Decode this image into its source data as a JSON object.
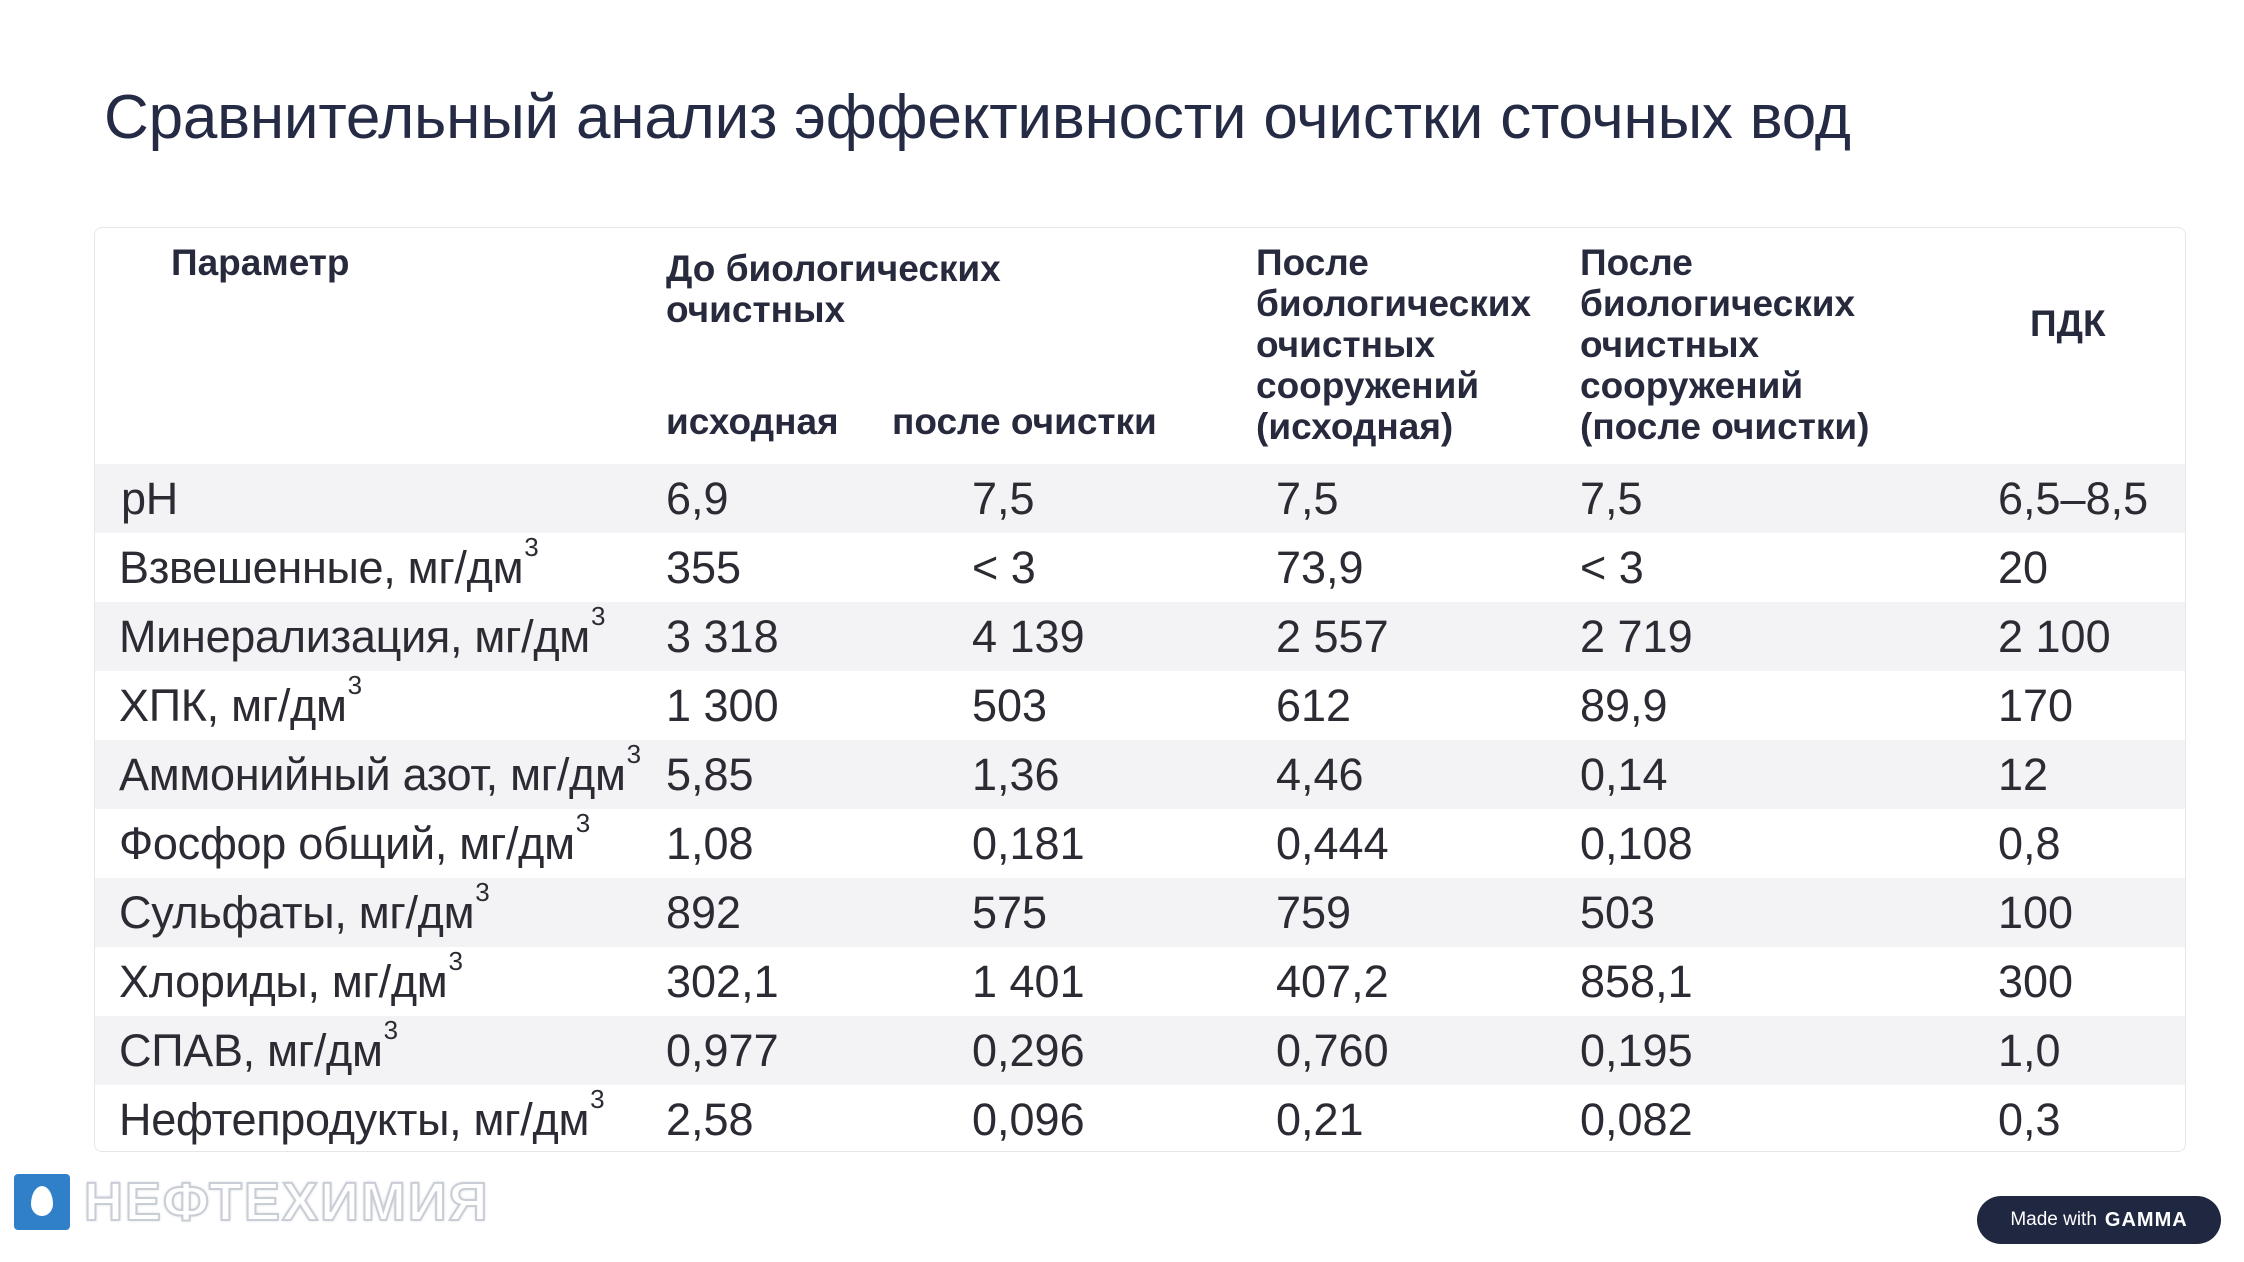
{
  "title": "Сравнительный анализ эффективности очистки сточных вод",
  "table": {
    "headers": {
      "param": "Параметр",
      "before_bio_l1": "До биологических",
      "before_bio_l2": "очистных",
      "sub_initial": "исходная",
      "sub_after": "после очистки",
      "after_init_l1": "После",
      "after_init_l2": "биологических",
      "after_init_l3": "очистных",
      "after_init_l4": "сооружений",
      "after_init_l5": "(исходная)",
      "after_clean_l1": "После",
      "after_clean_l2": "биологических",
      "after_clean_l3": "очистных",
      "after_clean_l4": "сооружений",
      "after_clean_l5": "(после очистки)",
      "pdk": "ПДК"
    },
    "rows": [
      {
        "param": "pH",
        "sup": "",
        "v1": "6,9",
        "v2": "7,5",
        "v3": "7,5",
        "v4": "7,5",
        "pdk": "6,5–8,5"
      },
      {
        "param": "Взвешенные, мг/дм",
        "sup": "3",
        "v1": "355",
        "v2": "< 3",
        "v3": "73,9",
        "v4": "< 3",
        "pdk": "20"
      },
      {
        "param": "Минерализация, мг/дм",
        "sup": "3",
        "v1": "3 318",
        "v2": "4 139",
        "v3": "2 557",
        "v4": "2 719",
        "pdk": "2 100"
      },
      {
        "param": "ХПК, мг/дм",
        "sup": "3",
        "v1": "1 300",
        "v2": "503",
        "v3": "612",
        "v4": "89,9",
        "pdk": "170"
      },
      {
        "param": "Аммонийный азот, мг/дм",
        "sup": "3",
        "v1": "5,85",
        "v2": "1,36",
        "v3": "4,46",
        "v4": "0,14",
        "pdk": "12"
      },
      {
        "param": "Фосфор общий, мг/дм",
        "sup": "3",
        "v1": "1,08",
        "v2": "0,181",
        "v3": "0,444",
        "v4": "0,108",
        "pdk": "0,8"
      },
      {
        "param": "Сульфаты, мг/дм",
        "sup": "3",
        "v1": "892",
        "v2": "575",
        "v3": "759",
        "v4": "503",
        "pdk": "100"
      },
      {
        "param": "Хлориды, мг/дм",
        "sup": "3",
        "v1": "302,1",
        "v2": "1 401",
        "v3": "407,2",
        "v4": "858,1",
        "pdk": "300"
      },
      {
        "param": "СПАВ, мг/дм",
        "sup": "3",
        "v1": "0,977",
        "v2": "0,296",
        "v3": "0,760",
        "v4": "0,195",
        "pdk": "1,0"
      },
      {
        "param": "Нефтепродукты, мг/дм",
        "sup": "3",
        "v1": "2,58",
        "v2": "0,096",
        "v3": "0,21",
        "v4": "0,082",
        "pdk": "0,3"
      }
    ]
  },
  "logo": {
    "text": "НЕФТЕХИМИЯ",
    "icon": "water-drop-icon"
  },
  "badge": {
    "prefix": "Made with",
    "brand": "GAMMA"
  },
  "colors": {
    "title": "#252b45",
    "row_shade": "#f3f3f5",
    "badge_bg": "#1f2741",
    "logo_blue": "#2f80c9"
  }
}
